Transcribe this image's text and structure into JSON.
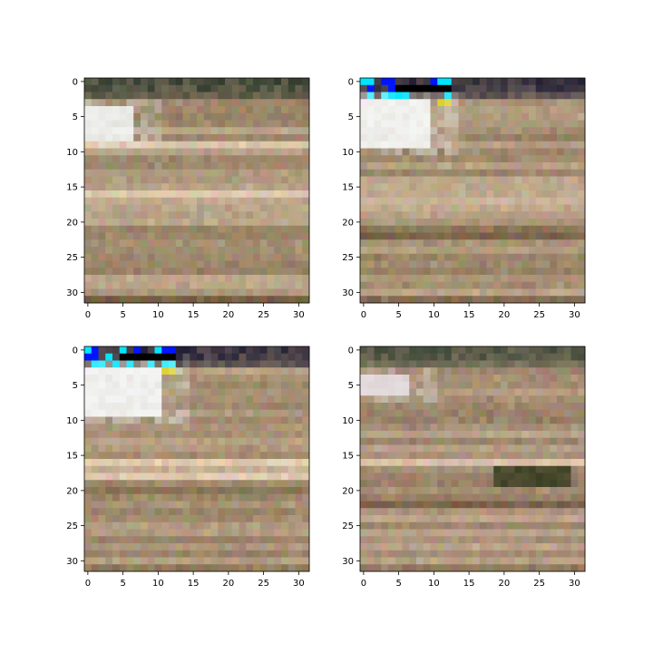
{
  "figure": {
    "background": "#ffffff",
    "layout": "2x2 grid of image panels"
  },
  "chart_data": [
    {
      "type": "heatmap",
      "description": "32x32 RGB pixel image, top-left panel",
      "xlim": [
        -0.5,
        31.5
      ],
      "ylim": [
        31.5,
        -0.5
      ],
      "xticks": [
        0,
        5,
        10,
        15,
        20,
        25,
        30
      ],
      "yticks": [
        0,
        5,
        10,
        15,
        20,
        25,
        30
      ],
      "xticklabels": [
        "0",
        "5",
        "10",
        "15",
        "20",
        "25",
        "30"
      ],
      "yticklabels": [
        "0",
        "5",
        "10",
        "15",
        "20",
        "25",
        "30"
      ],
      "base_color": "#a89378",
      "top_rows_color": "#1a2a1f",
      "bright_patch": {
        "rows": [
          4,
          8
        ],
        "cols": [
          0,
          6
        ],
        "color": "#f3f6f5"
      },
      "light_band_rows": [
        9,
        16,
        17
      ],
      "dark_band_rows": [
        21,
        22,
        31
      ]
    },
    {
      "type": "heatmap",
      "description": "32x32 RGB pixel image, top-right panel",
      "xlim": [
        -0.5,
        31.5
      ],
      "ylim": [
        31.5,
        -0.5
      ],
      "xticks": [
        0,
        5,
        10,
        15,
        20,
        25,
        30
      ],
      "yticks": [
        0,
        5,
        10,
        15,
        20,
        25,
        30
      ],
      "xticklabels": [
        "0",
        "5",
        "10",
        "15",
        "20",
        "25",
        "30"
      ],
      "yticklabels": [
        "0",
        "5",
        "10",
        "15",
        "20",
        "25",
        "30"
      ],
      "base_color": "#a89378",
      "top_rows_color": "#0a0a2a",
      "accent_colors": [
        "#00e5ff",
        "#0015ff",
        "#ff3bd9",
        "#d6c800"
      ],
      "bright_patch": {
        "rows": [
          3,
          9
        ],
        "cols": [
          0,
          9
        ],
        "color": "#f8fbfb"
      },
      "light_band_rows": [
        16,
        17,
        18
      ],
      "dark_band_rows": [
        21,
        22,
        31
      ]
    },
    {
      "type": "heatmap",
      "description": "32x32 RGB pixel image, bottom-left panel",
      "xlim": [
        -0.5,
        31.5
      ],
      "ylim": [
        31.5,
        -0.5
      ],
      "xticks": [
        0,
        5,
        10,
        15,
        20,
        25,
        30
      ],
      "yticks": [
        0,
        5,
        10,
        15,
        20,
        25,
        30
      ],
      "xticklabels": [
        "0",
        "5",
        "10",
        "15",
        "20",
        "25",
        "30"
      ],
      "yticklabels": [
        "0",
        "5",
        "10",
        "15",
        "20",
        "25",
        "30"
      ],
      "base_color": "#a89378",
      "top_rows_color": "#0a0a2a",
      "accent_colors": [
        "#00e5ff",
        "#0015ff",
        "#ff3bd9",
        "#d6c800"
      ],
      "bright_patch": {
        "rows": [
          3,
          9
        ],
        "cols": [
          0,
          10
        ],
        "color": "#f8fbfb"
      },
      "light_band_rows": [
        16,
        17,
        18
      ],
      "dark_band_rows": [
        20,
        21,
        31
      ]
    },
    {
      "type": "heatmap",
      "description": "32x32 RGB pixel image, bottom-right panel",
      "xlim": [
        -0.5,
        31.5
      ],
      "ylim": [
        31.5,
        -0.5
      ],
      "xticks": [
        0,
        5,
        10,
        15,
        20,
        25,
        30
      ],
      "yticks": [
        0,
        5,
        10,
        15,
        20,
        25,
        30
      ],
      "xticklabels": [
        "0",
        "5",
        "10",
        "15",
        "20",
        "25",
        "30"
      ],
      "yticklabels": [
        "0",
        "5",
        "10",
        "15",
        "20",
        "25",
        "30"
      ],
      "base_color": "#a8917a",
      "top_rows_color": "#2a3a2a",
      "bright_patch": {
        "rows": [
          4,
          6
        ],
        "cols": [
          0,
          6
        ],
        "color": "#e8e2e6"
      },
      "dark_patch": {
        "rows": [
          17,
          19
        ],
        "cols": [
          19,
          29
        ],
        "color": "#3a3f22"
      },
      "light_band_rows": [
        16
      ],
      "dark_band_rows": [
        21,
        22,
        31
      ]
    }
  ]
}
